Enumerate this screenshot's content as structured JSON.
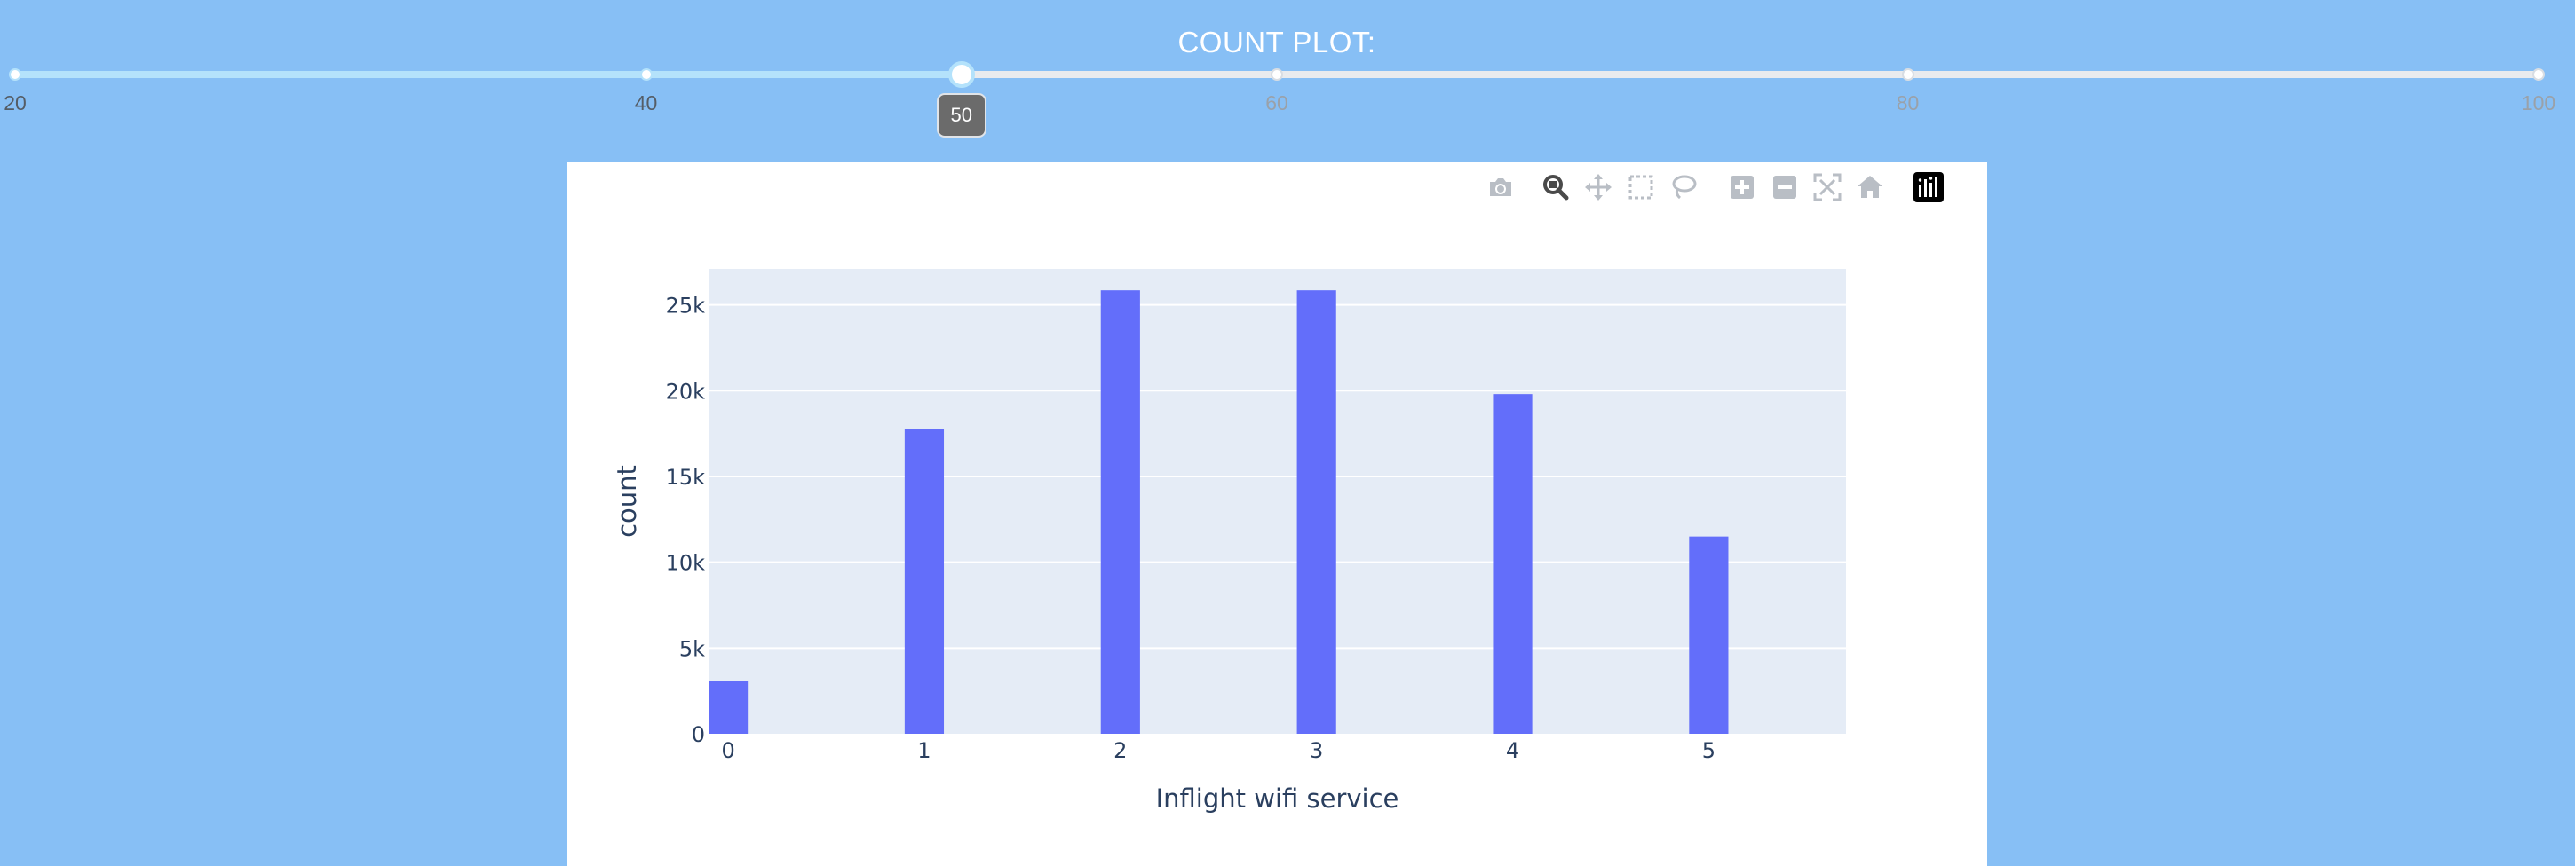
{
  "header": {
    "title": "COUNT PLOT:"
  },
  "slider": {
    "min": 20,
    "max": 100,
    "value": 50,
    "value_label": "50",
    "marks": [
      "20",
      "40",
      "60",
      "80",
      "100"
    ],
    "colors": {
      "track": "#b4e2fb",
      "rail": "#e9ebee",
      "tooltip": "#6b6b6b"
    }
  },
  "modebar": {
    "buttons": [
      {
        "name": "camera-icon",
        "title": "Download plot as a png"
      },
      {
        "name": "zoom-icon",
        "title": "Zoom"
      },
      {
        "name": "pan-icon",
        "title": "Pan"
      },
      {
        "name": "box-select-icon",
        "title": "Box Select"
      },
      {
        "name": "lasso-select-icon",
        "title": "Lasso Select"
      },
      {
        "name": "zoom-in-icon",
        "title": "Zoom in"
      },
      {
        "name": "zoom-out-icon",
        "title": "Zoom out"
      },
      {
        "name": "autoscale-icon",
        "title": "Autoscale"
      },
      {
        "name": "reset-axes-icon",
        "title": "Reset axes"
      },
      {
        "name": "plotly-logo-icon",
        "title": "Produced with Plotly"
      }
    ]
  },
  "chart_data": {
    "type": "bar",
    "title": "",
    "xlabel": "Inflight wifi service",
    "ylabel": "count",
    "categories": [
      "0",
      "1",
      "2",
      "3",
      "4",
      "5"
    ],
    "values": [
      3100,
      17750,
      25850,
      25850,
      19800,
      11500
    ],
    "x_range": [
      0,
      5
    ],
    "ylim": [
      0,
      27100
    ],
    "yticks": [
      0,
      5000,
      10000,
      15000,
      20000,
      25000
    ],
    "ytick_labels": [
      "0",
      "5k",
      "10k",
      "15k",
      "20k",
      "25k"
    ],
    "grid": true,
    "legend": "none",
    "colors": {
      "bar": "#636efa",
      "plot_bg": "#e5ecf6",
      "grid": "#ffffff",
      "text": "#2a3f5f"
    }
  }
}
